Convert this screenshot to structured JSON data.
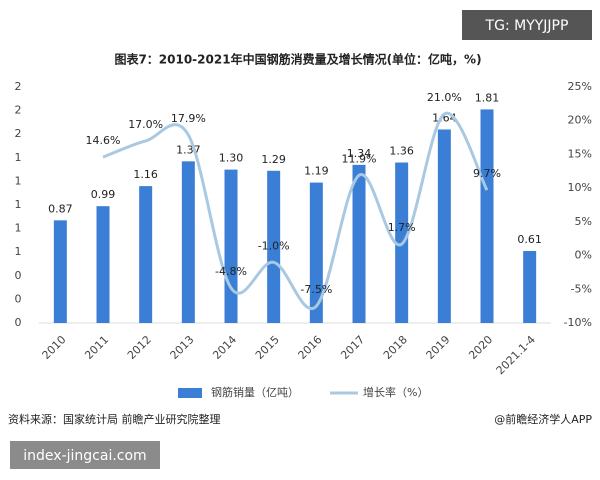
{
  "chart_data": {
    "type": "bar",
    "title": "图表7：2010-2021年中国钢筋消费量及增长情况(单位：亿吨，%)",
    "categories": [
      "2010",
      "2011",
      "2012",
      "2013",
      "2014",
      "2015",
      "2016",
      "2017",
      "2018",
      "2019",
      "2020",
      "2021.1-4"
    ],
    "series": [
      {
        "name": "钢筋销量（亿吨）",
        "type": "bar",
        "color": "#3a7fd5",
        "values": [
          0.87,
          0.99,
          1.16,
          1.37,
          1.3,
          1.29,
          1.19,
          1.34,
          1.36,
          1.64,
          1.81,
          0.61
        ],
        "value_labels": [
          "0.87",
          "0.99",
          "1.16",
          "1.37",
          "1.30",
          "1.29",
          "1.19",
          "1.34",
          "1.36",
          "1.64",
          "1.81",
          "0.61"
        ]
      },
      {
        "name": "增长率（%）",
        "type": "line",
        "axis": "y2",
        "color": "#a9c9e3",
        "values": [
          null,
          14.6,
          17.0,
          17.9,
          -4.8,
          -1.0,
          -7.5,
          11.9,
          1.7,
          21.0,
          9.7,
          null
        ],
        "value_labels": [
          null,
          "14.6%",
          "17.0%",
          "17.9%",
          "-4.8%",
          "-1.0%",
          "-7.5%",
          "11.9%",
          "1.7%",
          "21.0%",
          "9.7%",
          null
        ]
      }
    ],
    "ylim": [
      0,
      2.0
    ],
    "yticks": [
      {
        "value": 0,
        "label": "0"
      },
      {
        "value": 0.2,
        "label": "0"
      },
      {
        "value": 0.4,
        "label": "0"
      },
      {
        "value": 0.6,
        "label": "1"
      },
      {
        "value": 0.8,
        "label": "1"
      },
      {
        "value": 1.0,
        "label": "1"
      },
      {
        "value": 1.2,
        "label": "1"
      },
      {
        "value": 1.4,
        "label": "1"
      },
      {
        "value": 1.6,
        "label": "2"
      },
      {
        "value": 1.8,
        "label": "2"
      },
      {
        "value": 2.0,
        "label": "2"
      }
    ],
    "y2lim": [
      -10,
      25
    ],
    "y2ticks": [
      {
        "value": -10,
        "label": "-10%"
      },
      {
        "value": -5,
        "label": "-5%"
      },
      {
        "value": 0,
        "label": "0%"
      },
      {
        "value": 5,
        "label": "5%"
      },
      {
        "value": 10,
        "label": "10%"
      },
      {
        "value": 15,
        "label": "15%"
      },
      {
        "value": 20,
        "label": "20%"
      },
      {
        "value": 25,
        "label": "25%"
      }
    ]
  },
  "source": "资料来源：国家统计局 前瞻产业研究院整理",
  "credit": "@前瞻经济学人APP",
  "watermarks": [
    "TG: MYYJJPP",
    "index-jingcai.com"
  ]
}
